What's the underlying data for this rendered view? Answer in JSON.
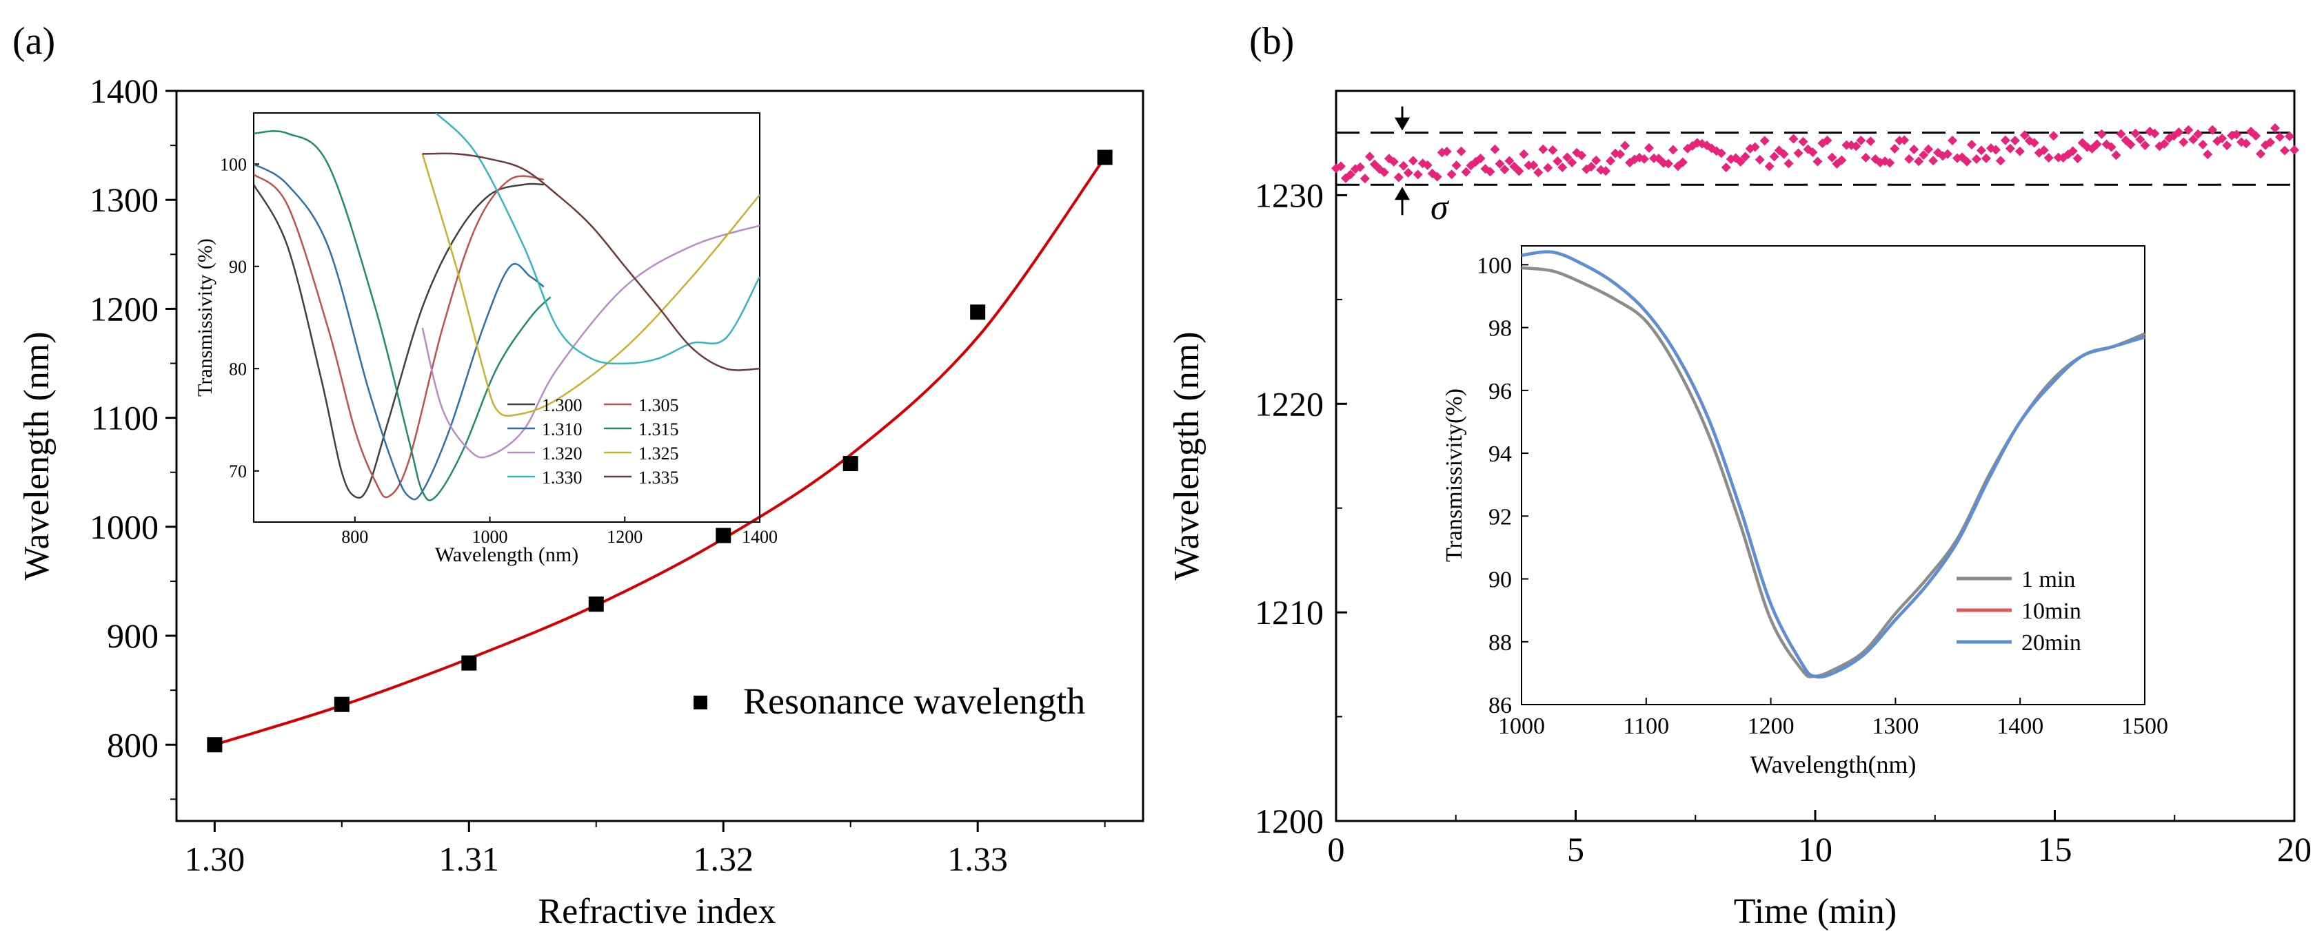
{
  "chart_data": [
    {
      "panel": "(a)",
      "type": "scatter",
      "xlabel": "Refractive index",
      "ylabel": "Wavelength (nm)",
      "xlim": [
        1.2985,
        1.3365
      ],
      "ylim": [
        730,
        1400
      ],
      "xticks": [
        "1.30",
        "1.31",
        "1.32",
        "1.33"
      ],
      "xtick_values": [
        1.3,
        1.31,
        1.32,
        1.33
      ],
      "yticks": [
        800,
        900,
        1000,
        1100,
        1200,
        1300,
        1400
      ],
      "series": [
        {
          "name": "Resonance wavelength",
          "marker": "square",
          "color": "#000000",
          "x": [
            1.3,
            1.305,
            1.31,
            1.315,
            1.32,
            1.325,
            1.33,
            1.335
          ],
          "y": [
            800,
            837,
            875,
            929,
            992,
            1058,
            1197,
            1339
          ]
        }
      ],
      "fit": {
        "name": "fit",
        "color": "#d40000",
        "x": [
          1.3,
          1.305,
          1.31,
          1.315,
          1.32,
          1.325,
          1.33,
          1.335
        ],
        "y": [
          800,
          836,
          879,
          928,
          989,
          1066,
          1174,
          1339
        ]
      },
      "legend": "bottom-right",
      "inset": {
        "type": "line",
        "xlabel": "Wavelength (nm)",
        "ylabel": "Transmissivity (%)",
        "xlim": [
          650,
          1400
        ],
        "ylim": [
          65,
          105
        ],
        "xticks": [
          800,
          1000,
          1200,
          1400
        ],
        "yticks": [
          70,
          80,
          90,
          100
        ],
        "series": [
          {
            "name": "1.300",
            "color": "#404040",
            "x": [
              650,
              700,
              750,
              780,
              800,
              820,
              850,
              900,
              950,
              1000,
              1050,
              1080
            ],
            "y": [
              98,
              92,
              79,
              70,
              67.5,
              68.5,
              75,
              86,
              93,
              97,
              98,
              98
            ]
          },
          {
            "name": "1.305",
            "color": "#c0504d",
            "x": [
              650,
              700,
              760,
              800,
              830,
              850,
              880,
              930,
              980,
              1030,
              1080
            ],
            "y": [
              99,
              96,
              84,
              74,
              69,
              67.5,
              71,
              84,
              94,
              98.5,
              98.5
            ]
          },
          {
            "name": "1.310",
            "color": "#2e6fa7",
            "x": [
              650,
              700,
              760,
              820,
              860,
              880,
              900,
              940,
              990,
              1030,
              1060,
              1080
            ],
            "y": [
              100,
              98,
              92,
              78,
              70,
              67.5,
              68,
              74,
              84,
              90,
              89,
              88
            ]
          },
          {
            "name": "1.315",
            "color": "#1f8a70",
            "x": [
              650,
              700,
              760,
              830,
              880,
              900,
              920,
              960,
              1010,
              1060,
              1090
            ],
            "y": [
              103,
              103,
              100,
              86,
              73,
              68,
              67.5,
              72,
              80,
              85,
              87
            ]
          },
          {
            "name": "1.320",
            "color": "#b98bc6",
            "x": [
              900,
              930,
              970,
              1000,
              1050,
              1100,
              1200,
              1300,
              1400
            ],
            "y": [
              84,
              76,
              72,
              71.5,
              74,
              80,
              88,
              92,
              94
            ]
          },
          {
            "name": "1.325",
            "color": "#c9b12b",
            "x": [
              900,
              950,
              990,
              1010,
              1040,
              1100,
              1200,
              1300,
              1400
            ],
            "y": [
              101,
              90,
              80,
              76,
              75.5,
              77,
              82,
              89,
              97
            ]
          },
          {
            "name": "1.330",
            "color": "#33b6bf",
            "x": [
              920,
              980,
              1050,
              1100,
              1150,
              1200,
              1250,
              1300,
              1350,
              1400
            ],
            "y": [
              105,
              101,
              92,
              84,
              81,
              80.5,
              81,
              82.5,
              83,
              89
            ]
          },
          {
            "name": "1.335",
            "color": "#6b3b3b",
            "x": [
              900,
              950,
              1000,
              1050,
              1100,
              1150,
              1200,
              1250,
              1300,
              1350,
              1400
            ],
            "y": [
              101,
              101,
              100.5,
              99.5,
              97,
              94,
              90,
              86,
              82,
              80,
              80
            ]
          }
        ]
      }
    },
    {
      "panel": "(b)",
      "type": "scatter",
      "xlabel": "Time (min)",
      "ylabel": "Wavelength (nm)",
      "xlim": [
        0,
        20
      ],
      "ylim": [
        1200,
        1235
      ],
      "xticks": [
        0,
        5,
        10,
        15,
        20
      ],
      "yticks": [
        1200,
        1210,
        1220,
        1230
      ],
      "series": [
        {
          "name": "resonance",
          "marker": "diamond",
          "color": "#e8247a",
          "trend": [
            1231.3,
            1232.1,
            1232.6
          ],
          "approx_range": [
            1231.0,
            1233.0
          ]
        }
      ],
      "sigma_lines": [
        1233.0,
        1230.5
      ],
      "sigma_label": "σ",
      "inset": {
        "type": "line",
        "xlabel": "Wavelength(nm)",
        "ylabel": "Transmissivity(%)",
        "xlim": [
          1000,
          1500
        ],
        "ylim": [
          86,
          100.6
        ],
        "xticks": [
          1000,
          1100,
          1200,
          1300,
          1400,
          1500
        ],
        "yticks": [
          86,
          88,
          90,
          92,
          94,
          96,
          98,
          100
        ],
        "legend": "bottom-right",
        "series": [
          {
            "name": "1 min",
            "color": "#8c8c8c",
            "x": [
              1000,
              1025,
              1050,
              1075,
              1100,
              1125,
              1150,
              1175,
              1200,
              1225,
              1235,
              1250,
              1275,
              1300,
              1325,
              1350,
              1375,
              1400,
              1425,
              1450,
              1475,
              1500
            ],
            "y": [
              99.9,
              99.8,
              99.4,
              98.9,
              98.2,
              96.7,
              94.6,
              91.8,
              88.7,
              87.1,
              86.9,
              87.1,
              87.7,
              88.9,
              90.0,
              91.3,
              93.3,
              95.0,
              96.3,
              97.1,
              97.4,
              97.8
            ]
          },
          {
            "name": "10min",
            "color": "#d85a5a",
            "x": [
              1000,
              1025,
              1050,
              1075,
              1100,
              1125,
              1150,
              1175,
              1200,
              1225,
              1235,
              1250,
              1275,
              1300,
              1325,
              1350,
              1375,
              1400,
              1425,
              1450,
              1475,
              1500
            ],
            "y": [
              100.3,
              100.4,
              100.0,
              99.4,
              98.5,
              97.1,
              95.1,
              92.3,
              89.2,
              87.3,
              86.9,
              87.0,
              87.6,
              88.7,
              89.8,
              91.2,
              93.2,
              95.0,
              96.2,
              97.1,
              97.4,
              97.7
            ]
          },
          {
            "name": "20min",
            "color": "#5b8fd6",
            "x": [
              1000,
              1025,
              1050,
              1075,
              1100,
              1125,
              1150,
              1175,
              1200,
              1225,
              1235,
              1250,
              1275,
              1300,
              1325,
              1350,
              1375,
              1400,
              1425,
              1450,
              1475,
              1500
            ],
            "y": [
              100.3,
              100.4,
              100.0,
              99.4,
              98.5,
              97.1,
              95.1,
              92.3,
              89.2,
              87.3,
              86.9,
              87.0,
              87.6,
              88.7,
              89.8,
              91.2,
              93.2,
              95.0,
              96.2,
              97.1,
              97.4,
              97.7
            ]
          }
        ]
      }
    }
  ]
}
